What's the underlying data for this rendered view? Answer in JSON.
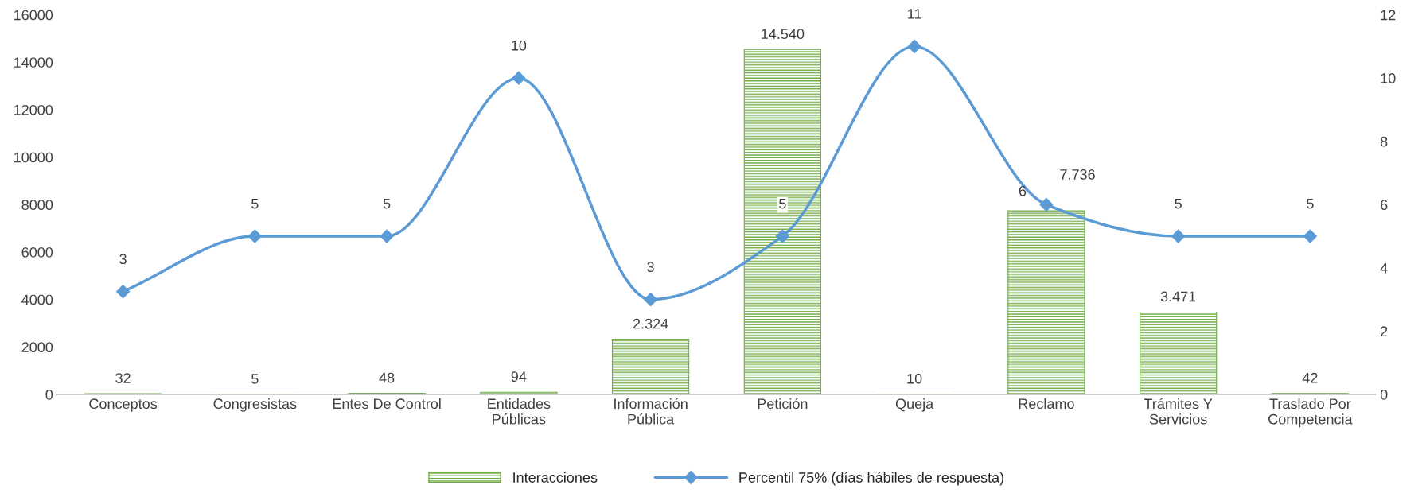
{
  "chart_data": {
    "type": "bar",
    "categories": [
      "Conceptos",
      "Congresistas",
      "Entes De Control",
      "Entidades\nPúblicas",
      "Información\nPública",
      "Petición",
      "Queja",
      "Reclamo",
      "Trámites Y\nServicios",
      "Traslado Por\nCompetencia"
    ],
    "series": [
      {
        "name": "Interacciones",
        "color": "#70ad47",
        "values": [
          32,
          5,
          48,
          94,
          2324,
          14540,
          10,
          7736,
          3471,
          42
        ],
        "value_labels": [
          "32",
          "5",
          "48",
          "94",
          "2.324",
          "14.540",
          "10",
          "7.736",
          "3.471",
          "42"
        ]
      },
      {
        "name": "Percentil 75% (días hábiles de respuesta)",
        "type": "line",
        "axis": "y2",
        "color": "#5b9bd5",
        "marker": "diamond",
        "values": [
          3.25,
          5,
          5,
          10,
          3,
          5,
          11,
          6,
          5,
          5
        ],
        "value_labels": [
          "3",
          "5",
          "5",
          "10",
          "3",
          "5",
          "11",
          "6",
          "5",
          "5"
        ]
      }
    ],
    "ylim": [
      0,
      16000
    ],
    "yticks": [
      0,
      2000,
      4000,
      6000,
      8000,
      10000,
      12000,
      14000,
      16000
    ],
    "y2lim": [
      0,
      12
    ],
    "y2ticks": [
      0,
      2,
      4,
      6,
      8,
      10,
      12
    ],
    "grid": false,
    "legend": "bottom"
  }
}
